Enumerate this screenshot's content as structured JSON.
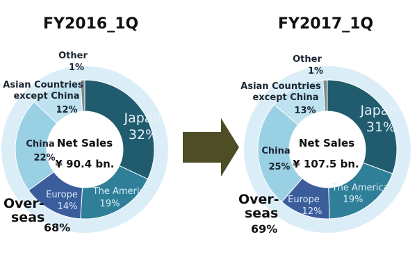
{
  "colors": {
    "japan": "#215b6e",
    "americas": "#2f7f98",
    "europe": "#3c5d9b",
    "china": "#9ad0e4",
    "asia": "#bfe2f0",
    "other": "#7f8c91",
    "overseas_ring": "#dbeef8",
    "arrow": "#4d4d26"
  },
  "chart_data": [
    {
      "type": "pie",
      "title": "FY2016_1Q",
      "center_label": "Net Sales",
      "center_value": "¥ 90.4 bn.",
      "overseas_label_line1": "Over-",
      "overseas_label_line2": "seas",
      "overseas_pct": "68%",
      "slices": [
        {
          "name": "Japan",
          "pct_label": "32%",
          "value": 32
        },
        {
          "name": "The Americas",
          "pct_label": "19%",
          "value": 19
        },
        {
          "name": "Europe",
          "pct_label": "14%",
          "value": 14
        },
        {
          "name": "China",
          "pct_label": "22%",
          "value": 22
        },
        {
          "name_line1": "Asian Countries",
          "name_line2": "except China",
          "pct_label": "12%",
          "value": 12
        },
        {
          "name": "Other",
          "pct_label": "1%",
          "value": 1
        }
      ]
    },
    {
      "type": "pie",
      "title": "FY2017_1Q",
      "center_label": "Net Sales",
      "center_value": "¥ 107.5 bn.",
      "overseas_label_line1": "Over-",
      "overseas_label_line2": "seas",
      "overseas_pct": "69%",
      "slices": [
        {
          "name": "Japan",
          "pct_label": "31%",
          "value": 31
        },
        {
          "name": "The Americas",
          "pct_label": "19%",
          "value": 19
        },
        {
          "name": "Europe",
          "pct_label": "12%",
          "value": 12
        },
        {
          "name": "China",
          "pct_label": "25%",
          "value": 25
        },
        {
          "name_line1": "Asian Countries",
          "name_line2": "except China",
          "pct_label": "13%",
          "value": 13
        },
        {
          "name": "Other",
          "pct_label": "1%",
          "value": 1
        }
      ]
    }
  ]
}
